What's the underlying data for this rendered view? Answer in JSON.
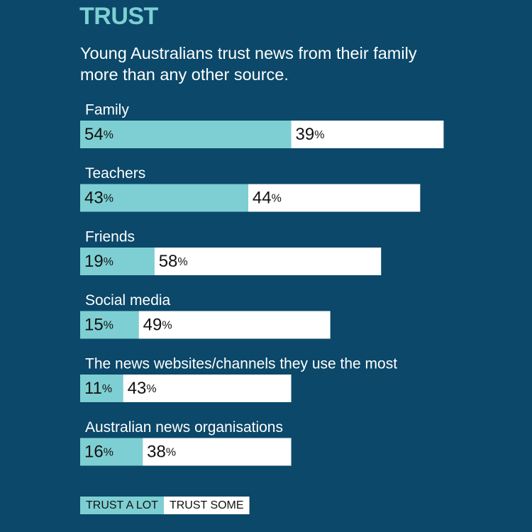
{
  "chart_data": {
    "type": "stacked-bar-horizontal",
    "title": "TRUST",
    "subtitle": "Young Australians trust news from their family more than any other source.",
    "categories": [
      "Family",
      "Teachers",
      "Friends",
      "Social media",
      "The news websites/channels they use the most",
      "Australian news organisations"
    ],
    "series": [
      {
        "name": "TRUST A LOT",
        "color": "#7ecfd3",
        "values": [
          54,
          43,
          19,
          15,
          11,
          16
        ],
        "value_labels": [
          "54%",
          "43%",
          "19%",
          "15%",
          "11%",
          "16%"
        ]
      },
      {
        "name": "TRUST SOME",
        "color": "#ffffff",
        "values": [
          39,
          44,
          58,
          49,
          43,
          38
        ],
        "value_labels": [
          "39%",
          "44%",
          "58%",
          "49%",
          "43%",
          "38%"
        ]
      }
    ],
    "xlim": [
      0,
      100
    ],
    "background": "#0b4869"
  }
}
